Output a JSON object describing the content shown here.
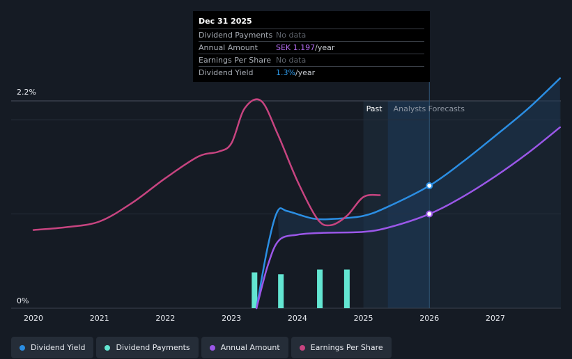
{
  "tooltip": {
    "date": "Dec 31 2025",
    "rows": [
      {
        "label": "Dividend Payments",
        "value": "No data",
        "unit": ""
      },
      {
        "label": "Annual Amount",
        "value": "SEK 1.197",
        "unit": "/year"
      },
      {
        "label": "Earnings Per Share",
        "value": "No data",
        "unit": ""
      },
      {
        "label": "Dividend Yield",
        "value": "1.3%",
        "unit": "/year"
      }
    ]
  },
  "legend": [
    {
      "label": "Dividend Yield",
      "color": "#2b8ee3"
    },
    {
      "label": "Dividend Payments",
      "color": "#63e6d2"
    },
    {
      "label": "Annual Amount",
      "color": "#9b57e8"
    },
    {
      "label": "Earnings Per Share",
      "color": "#c74480"
    }
  ],
  "chart_data": {
    "type": "line",
    "ylim_labels": [
      "2.2%",
      "0%"
    ],
    "ylim": [
      0,
      2.2
    ],
    "xlim": [
      2019.7,
      2027.98
    ],
    "x_ticks": [
      "2020",
      "2021",
      "2022",
      "2023",
      "2024",
      "2025",
      "2026",
      "2027"
    ],
    "x_tick_values": [
      2020,
      2021,
      2022,
      2023,
      2024,
      2025,
      2026,
      2027
    ],
    "regions": {
      "past_label": "Past",
      "forecast_label": "Analysts Forecasts",
      "past_start": 2025.0,
      "forecast_start": 2025.37,
      "forecast_end": 2026.0
    },
    "series": [
      {
        "name": "Dividend Yield",
        "color": "#2b8ee3",
        "points": [
          [
            2023.38,
            0.0
          ],
          [
            2023.55,
            0.65
          ],
          [
            2023.7,
            1.03
          ],
          [
            2023.85,
            1.03
          ],
          [
            2024.25,
            0.95
          ],
          [
            2024.6,
            0.95
          ],
          [
            2025.0,
            0.98
          ],
          [
            2025.35,
            1.07
          ],
          [
            2026.0,
            1.3
          ],
          [
            2026.5,
            1.55
          ],
          [
            2027.0,
            1.83
          ],
          [
            2027.5,
            2.12
          ],
          [
            2027.98,
            2.44
          ]
        ],
        "markers": [
          [
            2026.0,
            1.3
          ]
        ]
      },
      {
        "name": "Annual Amount",
        "color": "#9b57e8",
        "points": [
          [
            2023.38,
            0.0
          ],
          [
            2023.55,
            0.45
          ],
          [
            2023.72,
            0.72
          ],
          [
            2024.0,
            0.78
          ],
          [
            2024.4,
            0.8
          ],
          [
            2025.0,
            0.81
          ],
          [
            2025.4,
            0.86
          ],
          [
            2026.0,
            1.0
          ],
          [
            2026.5,
            1.18
          ],
          [
            2027.0,
            1.4
          ],
          [
            2027.5,
            1.65
          ],
          [
            2027.98,
            1.92
          ]
        ],
        "markers": [
          [
            2026.0,
            1.0
          ]
        ]
      },
      {
        "name": "Earnings Per Share",
        "color": "#c74480",
        "points": [
          [
            2020.0,
            0.83
          ],
          [
            2020.5,
            0.86
          ],
          [
            2021.0,
            0.92
          ],
          [
            2021.5,
            1.12
          ],
          [
            2022.0,
            1.38
          ],
          [
            2022.5,
            1.61
          ],
          [
            2022.8,
            1.66
          ],
          [
            2023.0,
            1.75
          ],
          [
            2023.2,
            2.12
          ],
          [
            2023.45,
            2.2
          ],
          [
            2023.7,
            1.85
          ],
          [
            2024.0,
            1.35
          ],
          [
            2024.3,
            0.95
          ],
          [
            2024.5,
            0.88
          ],
          [
            2024.75,
            0.98
          ],
          [
            2025.0,
            1.18
          ],
          [
            2025.25,
            1.2
          ]
        ]
      }
    ],
    "bars": {
      "name": "Dividend Payments",
      "color": "#63e6d2",
      "points": [
        [
          2023.35,
          0.38
        ],
        [
          2023.75,
          0.36
        ],
        [
          2024.34,
          0.41
        ],
        [
          2024.75,
          0.41
        ]
      ]
    }
  }
}
